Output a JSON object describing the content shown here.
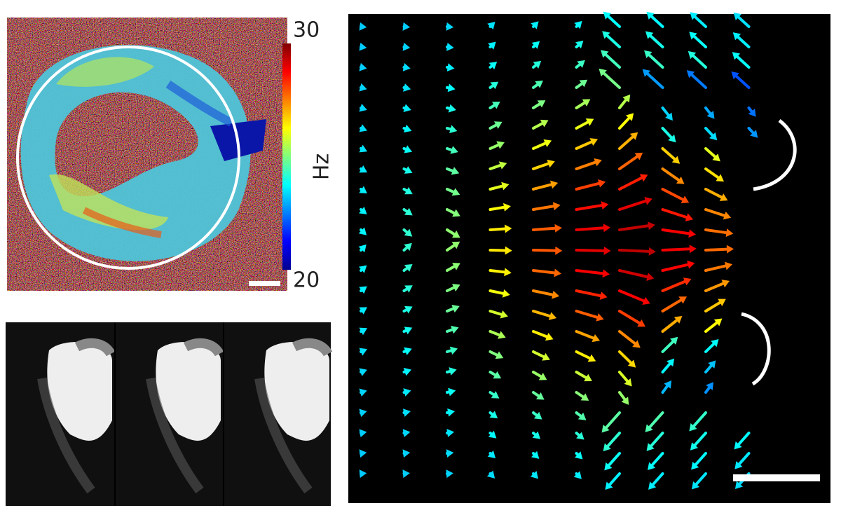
{
  "colorbar": {
    "max": 30,
    "min": 20,
    "label": "Hz"
  }
}
